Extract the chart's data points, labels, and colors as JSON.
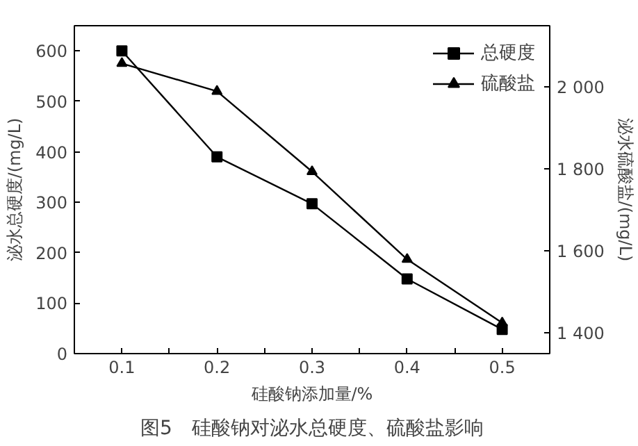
{
  "chart_data": {
    "type": "line",
    "xlabel": "硅酸钠添加量/%",
    "ylabel": "泌水总硬度/(mg/L)",
    "y2label": "泌水硫酸盐/(mg/L)",
    "annotations": [
      "图5　硅酸钠对泌水总硬度、硫酸盐影响"
    ],
    "x": [
      0.1,
      0.2,
      0.3,
      0.4,
      0.5
    ],
    "series": [
      {
        "name": "总硬度",
        "color": "#000000",
        "marker": "square",
        "values": [
          600,
          390,
          297,
          148,
          48
        ]
      },
      {
        "name": "硫酸盐",
        "color": "#000000",
        "marker": "triangle",
        "axis": "y2",
        "values": [
          2058,
          1990,
          1794,
          1580,
          1425
        ]
      }
    ],
    "xlim": [
      0.05,
      0.55
    ],
    "xticks": [
      0.1,
      {
        "value": 0.15,
        "label": null
      },
      0.2,
      {
        "value": 0.25,
        "label": null
      },
      0.3,
      {
        "value": 0.35,
        "label": null
      },
      0.4,
      {
        "value": 0.45,
        "label": null
      },
      0.5
    ],
    "ylim": [
      0,
      650
    ],
    "yticks": [
      0,
      100,
      200,
      300,
      400,
      500,
      600
    ],
    "y2lim": [
      1350,
      2150
    ],
    "y2ticks": [
      {
        "value": 1400,
        "label": "1 400"
      },
      {
        "value": 1600,
        "label": "1 600"
      },
      {
        "value": 1800,
        "label": "1 800"
      },
      {
        "value": 2000,
        "label": "2 000"
      }
    ],
    "grid": false,
    "legend": "top right",
    "line_style": "solid"
  }
}
